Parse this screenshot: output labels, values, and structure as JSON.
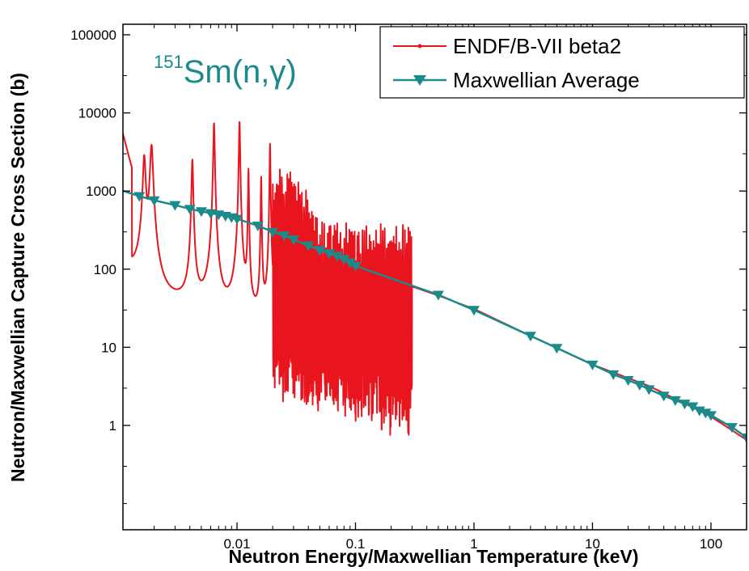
{
  "chart_data": {
    "type": "line",
    "xlabel": "Neutron Energy/Maxwellian Temperature (keV)",
    "ylabel": "Neutron/Maxwellian Capture Cross Section (b)",
    "xscale": "log",
    "yscale": "log",
    "xlim": [
      0.001,
      200
    ],
    "ylim": [
      0.1,
      150000
    ],
    "x_ticks": [
      0.01,
      0.1,
      1,
      10,
      100
    ],
    "x_tick_labels": [
      "0.01",
      "0.1",
      "1",
      "10",
      "100"
    ],
    "y_ticks": [
      1,
      10,
      100,
      1000,
      10000,
      100000
    ],
    "y_tick_labels": [
      "1",
      "10",
      "100",
      "1000",
      "10000",
      "100000"
    ],
    "annotation": {
      "mass": "151",
      "element": "Sm",
      "reaction": "(n,γ)",
      "color": "#1a8a8a"
    },
    "legend": {
      "position": "top-right"
    },
    "series": [
      {
        "name": "ENDF/B-VII beta2",
        "color": "#e8141e",
        "marker": "dot",
        "description_points": {
          "smooth_part_x": [
            0.3,
            0.5,
            1,
            3,
            10,
            30,
            100,
            200
          ],
          "smooth_part_y": [
            60,
            46,
            31,
            14,
            6,
            3.2,
            1.3,
            0.65
          ],
          "low_energy_start": [
            0.001,
            10000
          ],
          "resonance_peaks_x": [
            0.00165,
            0.0019,
            0.0042,
            0.0064,
            0.0105,
            0.0125,
            0.016,
            0.019
          ],
          "resonance_peaks_y": [
            2700,
            3800,
            2500,
            7400,
            7800,
            1900,
            1500,
            4000
          ],
          "resonance_region_end": 0.3
        }
      },
      {
        "name": "Maxwellian Average",
        "color": "#1a8a8a",
        "marker": "triangle-down",
        "x": [
          0.001,
          0.0015,
          0.002,
          0.003,
          0.004,
          0.005,
          0.006,
          0.007,
          0.008,
          0.009,
          0.01,
          0.015,
          0.02,
          0.025,
          0.03,
          0.04,
          0.05,
          0.06,
          0.07,
          0.08,
          0.09,
          0.1,
          0.5,
          1,
          3,
          5,
          10,
          15,
          20,
          25,
          30,
          40,
          50,
          60,
          70,
          80,
          90,
          100,
          150,
          200
        ],
        "y": [
          1050,
          860,
          760,
          660,
          590,
          550,
          520,
          500,
          480,
          460,
          440,
          360,
          300,
          270,
          240,
          200,
          175,
          160,
          148,
          135,
          122,
          110,
          47,
          30,
          14,
          9.8,
          6,
          4.5,
          3.8,
          3.3,
          2.9,
          2.4,
          2.1,
          1.9,
          1.75,
          1.55,
          1.45,
          1.35,
          0.95,
          0.7
        ]
      }
    ]
  }
}
